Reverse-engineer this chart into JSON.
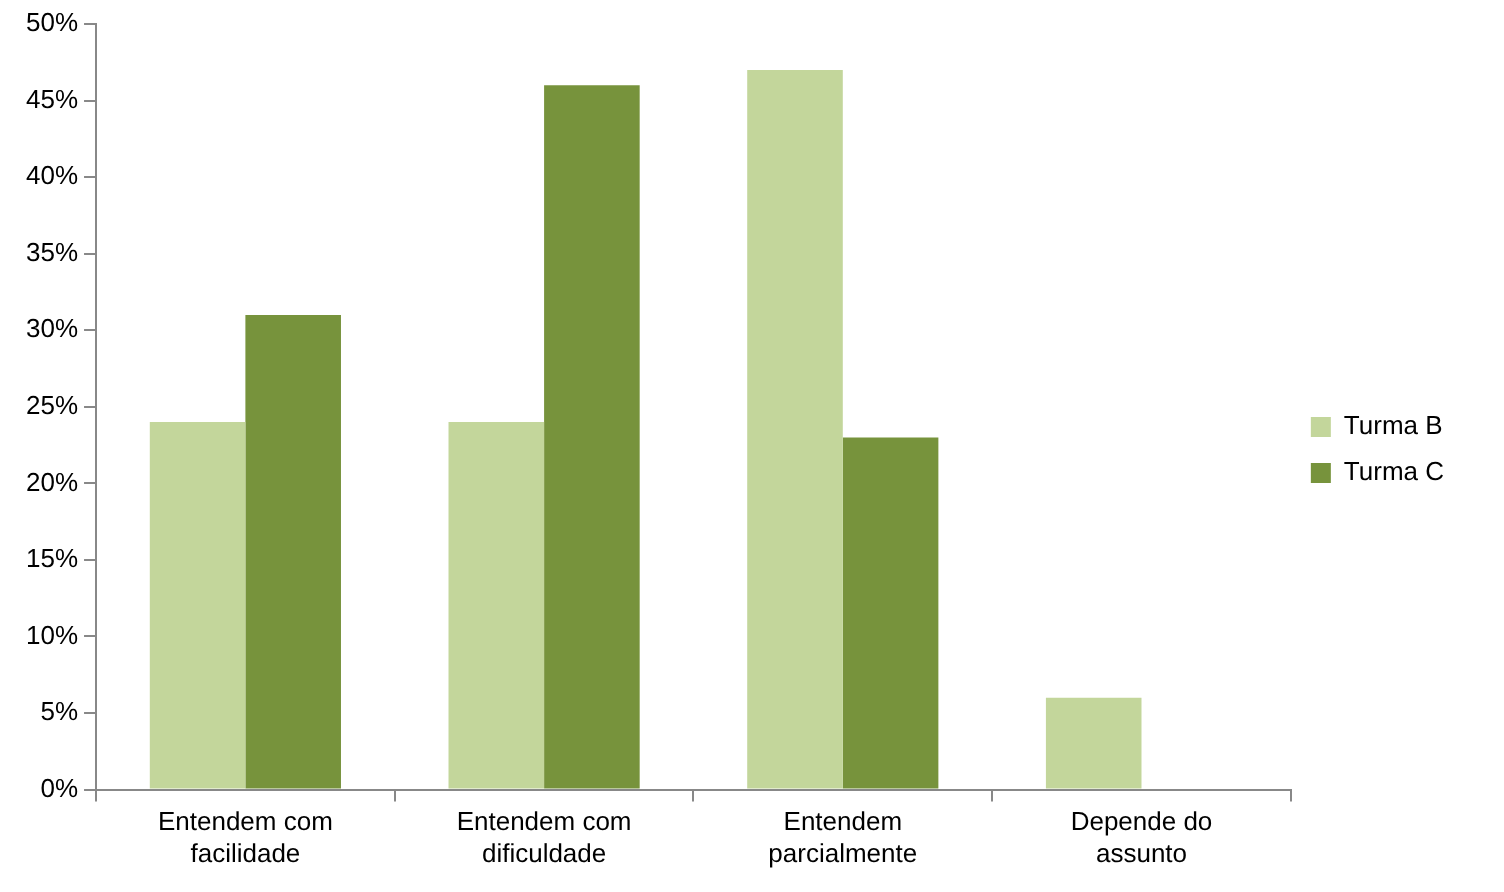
{
  "chart_data": {
    "type": "bar",
    "categories": [
      "Entendem com facilidade",
      "Entendem com dificuldade",
      "Entendem parcialmente",
      "Depende do assunto"
    ],
    "series": [
      {
        "name": "Turma B",
        "color": "#c3d69b",
        "values": [
          24,
          24,
          47,
          6
        ]
      },
      {
        "name": "Turma C",
        "color": "#77933c",
        "values": [
          31,
          46,
          23,
          0
        ]
      }
    ],
    "ylim": [
      0,
      50
    ],
    "yticks": [
      {
        "value": 0,
        "label": "0%"
      },
      {
        "value": 5,
        "label": "5%"
      },
      {
        "value": 10,
        "label": "10%"
      },
      {
        "value": 15,
        "label": "15%"
      },
      {
        "value": 20,
        "label": "20%"
      },
      {
        "value": 25,
        "label": "25%"
      },
      {
        "value": 30,
        "label": "30%"
      },
      {
        "value": 35,
        "label": "35%"
      },
      {
        "value": 40,
        "label": "40%"
      },
      {
        "value": 45,
        "label": "45%"
      },
      {
        "value": 50,
        "label": "50%"
      }
    ],
    "grid": false,
    "legend": "right"
  }
}
